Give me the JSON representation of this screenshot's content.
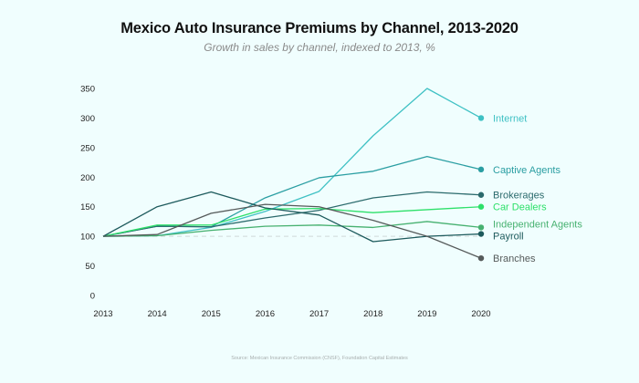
{
  "chart_data": {
    "type": "line",
    "title": "Mexico Auto Insurance Premiums by Channel, 2013-2020",
    "subtitle": "Growth in sales by channel, indexed to 2013, %",
    "source": "Source: Mexican Insurance Commission (CNSF), Foundation Capital Estimates",
    "xlabel": "",
    "ylabel": "",
    "x": [
      "2013",
      "2014",
      "2015",
      "2016",
      "2017",
      "2018",
      "2019",
      "2020"
    ],
    "yticks": [
      0,
      50,
      100,
      150,
      200,
      250,
      300,
      350
    ],
    "ylim": [
      0,
      350
    ],
    "baseline": 100,
    "grid": false,
    "legend": "direct-labels-right",
    "series": [
      {
        "name": "Internet",
        "color": "#3fc1c4",
        "values": [
          100,
          101,
          115,
          142,
          176,
          270,
          350,
          300
        ]
      },
      {
        "name": "Captive Agents",
        "color": "#2a9ea2",
        "values": [
          100,
          117,
          116,
          165,
          199,
          210,
          235,
          213
        ]
      },
      {
        "name": "Brokerages",
        "color": "#2b6a6c",
        "values": [
          100,
          117,
          116,
          131,
          144,
          165,
          175,
          170
        ]
      },
      {
        "name": "Car Dealers",
        "color": "#2ee06a",
        "values": [
          100,
          119,
          119,
          146,
          147,
          140,
          145,
          150
        ]
      },
      {
        "name": "Independent Agents",
        "color": "#47b170",
        "values": [
          100,
          101,
          110,
          117,
          119,
          115,
          125,
          115
        ]
      },
      {
        "name": "Payroll",
        "color": "#1d5a5c",
        "values": [
          100,
          150,
          175,
          148,
          136,
          91,
          100,
          104
        ]
      },
      {
        "name": "Branches",
        "color": "#555a5a",
        "values": [
          100,
          103,
          139,
          154,
          150,
          127,
          100,
          63
        ]
      }
    ]
  }
}
